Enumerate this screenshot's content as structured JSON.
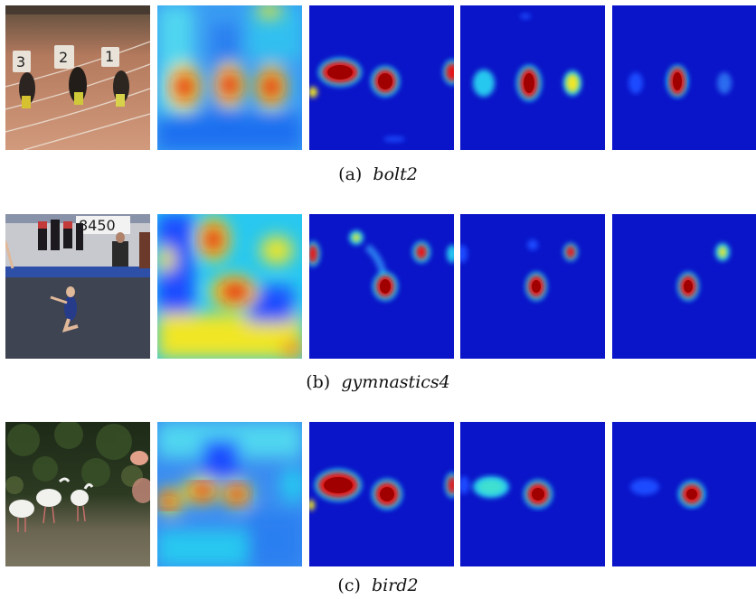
{
  "rows": [
    {
      "label": "(a)",
      "name": "bolt2",
      "photo": {
        "bg_top": "#6f5a45",
        "bg_bottom": "#c98f73",
        "accent": "#e8e2d8"
      },
      "panels": [
        {
          "kind": "photo",
          "icon": "runners-photo"
        },
        {
          "kind": "heatmap-coarse",
          "icon": "response-map"
        },
        {
          "kind": "heatmap",
          "icon": "response-map"
        },
        {
          "kind": "heatmap",
          "icon": "response-map"
        },
        {
          "kind": "heatmap",
          "icon": "response-map"
        }
      ]
    },
    {
      "label": "(b)",
      "name": "gymnastics4",
      "photo": {
        "bg_top": "#9aa8c2",
        "bg_bottom": "#3d4350",
        "accent": "#d8d8dc"
      },
      "panels": [
        {
          "kind": "photo",
          "icon": "gymnast-photo",
          "sign_text": "8450"
        },
        {
          "kind": "heatmap-coarse",
          "icon": "response-map"
        },
        {
          "kind": "heatmap",
          "icon": "response-map"
        },
        {
          "kind": "heatmap",
          "icon": "response-map"
        },
        {
          "kind": "heatmap",
          "icon": "response-map"
        }
      ]
    },
    {
      "label": "(c)",
      "name": "bird2",
      "photo": {
        "bg_top": "#1f2a18",
        "bg_bottom": "#6e6a55",
        "accent": "#f1f1ee"
      },
      "panels": [
        {
          "kind": "photo",
          "icon": "birds-photo"
        },
        {
          "kind": "heatmap-coarse",
          "icon": "response-map"
        },
        {
          "kind": "heatmap",
          "icon": "response-map"
        },
        {
          "kind": "heatmap",
          "icon": "response-map"
        },
        {
          "kind": "heatmap",
          "icon": "response-map"
        }
      ]
    }
  ],
  "colors": {
    "jet_dark_blue": "#0a14c8",
    "jet_blue": "#1e4bff",
    "jet_cyan": "#28c8f0",
    "jet_yellow": "#f0e628",
    "jet_red": "#e61414",
    "jet_dark_red": "#a00000"
  }
}
